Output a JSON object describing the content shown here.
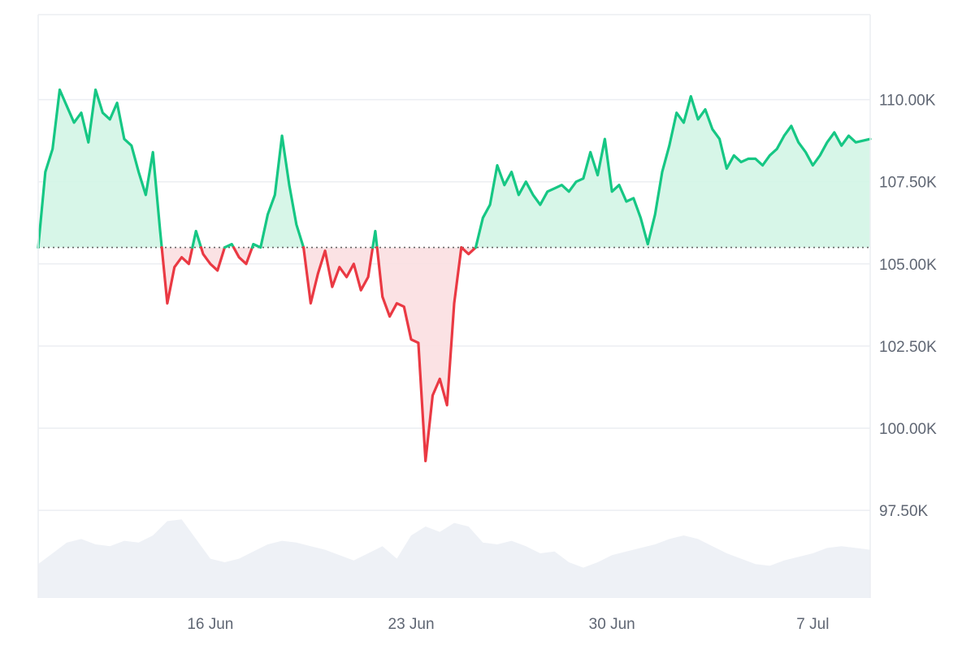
{
  "chart_data": {
    "type": "area",
    "title": "",
    "xlabel": "",
    "ylabel": "",
    "x_range": [
      "2025-06-10",
      "2025-07-09"
    ],
    "ylim": [
      95000,
      112500
    ],
    "baseline": {
      "value": 105500,
      "style": "dotted"
    },
    "colors": {
      "up_line": "#16c784",
      "up_fill": "#d3f5e5",
      "down_line": "#ea3943",
      "down_fill": "#fbdfe1",
      "volume_fill": "#eef1f6",
      "grid": "#eceef2",
      "baseline": "#666666"
    },
    "y_ticks": [
      {
        "value": 97500,
        "label": "97.50K"
      },
      {
        "value": 100000,
        "label": "100.00K"
      },
      {
        "value": 102500,
        "label": "102.50K"
      },
      {
        "value": 105000,
        "label": "105.00K"
      },
      {
        "value": 107500,
        "label": "107.50K"
      },
      {
        "value": 110000,
        "label": "110.00K"
      }
    ],
    "x_ticks": [
      {
        "date": "2025-06-16",
        "label": "16 Jun"
      },
      {
        "date": "2025-06-23",
        "label": "23 Jun"
      },
      {
        "date": "2025-06-30",
        "label": "30 Jun"
      },
      {
        "date": "2025-07-07",
        "label": "7 Jul"
      }
    ],
    "series": [
      {
        "type": "line",
        "points": [
          [
            "2025-06-10 00:00",
            105500
          ],
          [
            "2025-06-10 06:00",
            107800
          ],
          [
            "2025-06-10 12:00",
            108500
          ],
          [
            "2025-06-10 18:00",
            110300
          ],
          [
            "2025-06-11 00:00",
            109800
          ],
          [
            "2025-06-11 06:00",
            109300
          ],
          [
            "2025-06-11 12:00",
            109600
          ],
          [
            "2025-06-11 18:00",
            108700
          ],
          [
            "2025-06-12 00:00",
            110300
          ],
          [
            "2025-06-12 06:00",
            109600
          ],
          [
            "2025-06-12 12:00",
            109400
          ],
          [
            "2025-06-12 18:00",
            109900
          ],
          [
            "2025-06-13 00:00",
            108800
          ],
          [
            "2025-06-13 06:00",
            108600
          ],
          [
            "2025-06-13 12:00",
            107800
          ],
          [
            "2025-06-13 18:00",
            107100
          ],
          [
            "2025-06-14 00:00",
            108400
          ],
          [
            "2025-06-14 06:00",
            106000
          ],
          [
            "2025-06-14 12:00",
            103800
          ],
          [
            "2025-06-14 18:00",
            104900
          ],
          [
            "2025-06-15 00:00",
            105200
          ],
          [
            "2025-06-15 06:00",
            105000
          ],
          [
            "2025-06-15 12:00",
            106000
          ],
          [
            "2025-06-15 18:00",
            105300
          ],
          [
            "2025-06-16 00:00",
            105000
          ],
          [
            "2025-06-16 06:00",
            104800
          ],
          [
            "2025-06-16 12:00",
            105500
          ],
          [
            "2025-06-16 18:00",
            105600
          ],
          [
            "2025-06-17 00:00",
            105200
          ],
          [
            "2025-06-17 06:00",
            105000
          ],
          [
            "2025-06-17 12:00",
            105600
          ],
          [
            "2025-06-17 18:00",
            105500
          ],
          [
            "2025-06-18 00:00",
            106500
          ],
          [
            "2025-06-18 06:00",
            107100
          ],
          [
            "2025-06-18 12:00",
            108900
          ],
          [
            "2025-06-18 18:00",
            107400
          ],
          [
            "2025-06-19 00:00",
            106200
          ],
          [
            "2025-06-19 06:00",
            105500
          ],
          [
            "2025-06-19 12:00",
            103800
          ],
          [
            "2025-06-19 18:00",
            104700
          ],
          [
            "2025-06-20 00:00",
            105400
          ],
          [
            "2025-06-20 06:00",
            104300
          ],
          [
            "2025-06-20 12:00",
            104900
          ],
          [
            "2025-06-20 18:00",
            104600
          ],
          [
            "2025-06-21 00:00",
            105000
          ],
          [
            "2025-06-21 06:00",
            104200
          ],
          [
            "2025-06-21 12:00",
            104600
          ],
          [
            "2025-06-21 18:00",
            106000
          ],
          [
            "2025-06-22 00:00",
            104000
          ],
          [
            "2025-06-22 06:00",
            103400
          ],
          [
            "2025-06-22 12:00",
            103800
          ],
          [
            "2025-06-22 18:00",
            103700
          ],
          [
            "2025-06-23 00:00",
            102700
          ],
          [
            "2025-06-23 06:00",
            102600
          ],
          [
            "2025-06-23 12:00",
            99000
          ],
          [
            "2025-06-23 18:00",
            101000
          ],
          [
            "2025-06-24 00:00",
            101500
          ],
          [
            "2025-06-24 06:00",
            100700
          ],
          [
            "2025-06-24 12:00",
            103800
          ],
          [
            "2025-06-24 18:00",
            105500
          ],
          [
            "2025-06-25 00:00",
            105300
          ],
          [
            "2025-06-25 06:00",
            105500
          ],
          [
            "2025-06-25 12:00",
            106400
          ],
          [
            "2025-06-25 18:00",
            106800
          ],
          [
            "2025-06-26 00:00",
            108000
          ],
          [
            "2025-06-26 06:00",
            107400
          ],
          [
            "2025-06-26 12:00",
            107800
          ],
          [
            "2025-06-26 18:00",
            107100
          ],
          [
            "2025-06-27 00:00",
            107500
          ],
          [
            "2025-06-27 06:00",
            107100
          ],
          [
            "2025-06-27 12:00",
            106800
          ],
          [
            "2025-06-27 18:00",
            107200
          ],
          [
            "2025-06-28 00:00",
            107300
          ],
          [
            "2025-06-28 06:00",
            107400
          ],
          [
            "2025-06-28 12:00",
            107200
          ],
          [
            "2025-06-28 18:00",
            107500
          ],
          [
            "2025-06-29 00:00",
            107600
          ],
          [
            "2025-06-29 06:00",
            108400
          ],
          [
            "2025-06-29 12:00",
            107700
          ],
          [
            "2025-06-29 18:00",
            108800
          ],
          [
            "2025-06-30 00:00",
            107200
          ],
          [
            "2025-06-30 06:00",
            107400
          ],
          [
            "2025-06-30 12:00",
            106900
          ],
          [
            "2025-06-30 18:00",
            107000
          ],
          [
            "2025-07-01 00:00",
            106400
          ],
          [
            "2025-07-01 06:00",
            105600
          ],
          [
            "2025-07-01 12:00",
            106500
          ],
          [
            "2025-07-01 18:00",
            107800
          ],
          [
            "2025-07-02 00:00",
            108600
          ],
          [
            "2025-07-02 06:00",
            109600
          ],
          [
            "2025-07-02 12:00",
            109300
          ],
          [
            "2025-07-02 18:00",
            110100
          ],
          [
            "2025-07-03 00:00",
            109400
          ],
          [
            "2025-07-03 06:00",
            109700
          ],
          [
            "2025-07-03 12:00",
            109100
          ],
          [
            "2025-07-03 18:00",
            108800
          ],
          [
            "2025-07-04 00:00",
            107900
          ],
          [
            "2025-07-04 06:00",
            108300
          ],
          [
            "2025-07-04 12:00",
            108100
          ],
          [
            "2025-07-04 18:00",
            108200
          ],
          [
            "2025-07-05 00:00",
            108200
          ],
          [
            "2025-07-05 06:00",
            108000
          ],
          [
            "2025-07-05 12:00",
            108300
          ],
          [
            "2025-07-05 18:00",
            108500
          ],
          [
            "2025-07-06 00:00",
            108900
          ],
          [
            "2025-07-06 06:00",
            109200
          ],
          [
            "2025-07-06 12:00",
            108700
          ],
          [
            "2025-07-06 18:00",
            108400
          ],
          [
            "2025-07-07 00:00",
            108000
          ],
          [
            "2025-07-07 06:00",
            108300
          ],
          [
            "2025-07-07 12:00",
            108700
          ],
          [
            "2025-07-07 18:00",
            109000
          ],
          [
            "2025-07-08 00:00",
            108600
          ],
          [
            "2025-07-08 06:00",
            108900
          ],
          [
            "2025-07-08 12:00",
            108700
          ],
          [
            "2025-07-09 00:00",
            108800
          ]
        ]
      },
      {
        "type": "volume",
        "points": [
          [
            "2025-06-10 00:00",
            0.38
          ],
          [
            "2025-06-10 12:00",
            0.5
          ],
          [
            "2025-06-11 00:00",
            0.62
          ],
          [
            "2025-06-11 12:00",
            0.66
          ],
          [
            "2025-06-12 00:00",
            0.6
          ],
          [
            "2025-06-12 12:00",
            0.58
          ],
          [
            "2025-06-13 00:00",
            0.64
          ],
          [
            "2025-06-13 12:00",
            0.62
          ],
          [
            "2025-06-14 00:00",
            0.7
          ],
          [
            "2025-06-14 12:00",
            0.86
          ],
          [
            "2025-06-15 00:00",
            0.88
          ],
          [
            "2025-06-15 12:00",
            0.66
          ],
          [
            "2025-06-16 00:00",
            0.44
          ],
          [
            "2025-06-16 12:00",
            0.4
          ],
          [
            "2025-06-17 00:00",
            0.44
          ],
          [
            "2025-06-17 12:00",
            0.52
          ],
          [
            "2025-06-18 00:00",
            0.6
          ],
          [
            "2025-06-18 12:00",
            0.64
          ],
          [
            "2025-06-19 00:00",
            0.62
          ],
          [
            "2025-06-19 12:00",
            0.58
          ],
          [
            "2025-06-20 00:00",
            0.54
          ],
          [
            "2025-06-20 12:00",
            0.48
          ],
          [
            "2025-06-21 00:00",
            0.42
          ],
          [
            "2025-06-21 12:00",
            0.5
          ],
          [
            "2025-06-22 00:00",
            0.58
          ],
          [
            "2025-06-22 12:00",
            0.44
          ],
          [
            "2025-06-23 00:00",
            0.7
          ],
          [
            "2025-06-23 12:00",
            0.8
          ],
          [
            "2025-06-24 00:00",
            0.74
          ],
          [
            "2025-06-24 12:00",
            0.84
          ],
          [
            "2025-06-25 00:00",
            0.8
          ],
          [
            "2025-06-25 12:00",
            0.62
          ],
          [
            "2025-06-26 00:00",
            0.6
          ],
          [
            "2025-06-26 12:00",
            0.64
          ],
          [
            "2025-06-27 00:00",
            0.58
          ],
          [
            "2025-06-27 12:00",
            0.5
          ],
          [
            "2025-06-28 00:00",
            0.52
          ],
          [
            "2025-06-28 12:00",
            0.4
          ],
          [
            "2025-06-29 00:00",
            0.34
          ],
          [
            "2025-06-29 12:00",
            0.4
          ],
          [
            "2025-06-30 00:00",
            0.48
          ],
          [
            "2025-06-30 12:00",
            0.52
          ],
          [
            "2025-07-01 00:00",
            0.56
          ],
          [
            "2025-07-01 12:00",
            0.6
          ],
          [
            "2025-07-02 00:00",
            0.66
          ],
          [
            "2025-07-02 12:00",
            0.7
          ],
          [
            "2025-07-03 00:00",
            0.66
          ],
          [
            "2025-07-03 12:00",
            0.58
          ],
          [
            "2025-07-04 00:00",
            0.5
          ],
          [
            "2025-07-04 12:00",
            0.44
          ],
          [
            "2025-07-05 00:00",
            0.38
          ],
          [
            "2025-07-05 12:00",
            0.36
          ],
          [
            "2025-07-06 00:00",
            0.42
          ],
          [
            "2025-07-06 12:00",
            0.46
          ],
          [
            "2025-07-07 00:00",
            0.5
          ],
          [
            "2025-07-07 12:00",
            0.56
          ],
          [
            "2025-07-08 00:00",
            0.58
          ],
          [
            "2025-07-08 12:00",
            0.56
          ],
          [
            "2025-07-09 00:00",
            0.54
          ]
        ]
      }
    ],
    "grid": true,
    "legend": "none"
  }
}
